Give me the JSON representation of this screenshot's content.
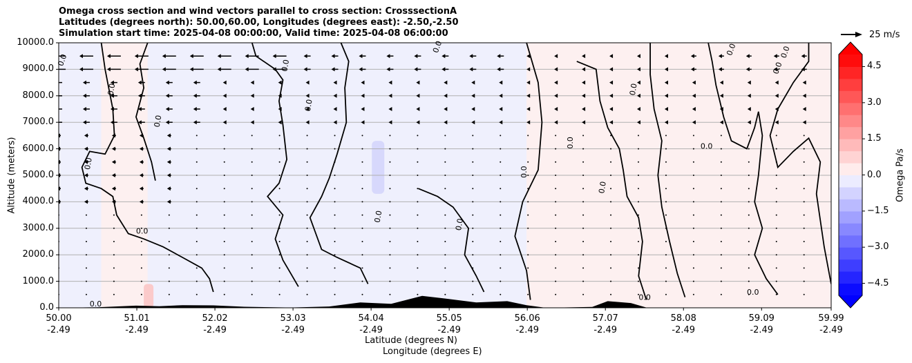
{
  "titles": [
    "Omega cross section and wind vectors parallel to cross section: CrosssectionA",
    "Latitudes (degrees north): 50.00,60.00, Longitudes (degrees east): -2.50,-2.50",
    "Simulation start time: 2025-04-08 00:00:00, Valid time: 2025-04-08 06:00:00"
  ],
  "quiver_key": {
    "label": "25 m/s"
  },
  "colorbar": {
    "label": "Omega Pa/s",
    "ticks": [
      "4.5",
      "3.0",
      "1.5",
      "0.0",
      "−1.5",
      "−3.0",
      "−4.5"
    ],
    "tick_values": [
      4.5,
      3.0,
      1.5,
      0.0,
      -1.5,
      -3.0,
      -4.5
    ],
    "range": [
      -5,
      5
    ],
    "colors_high": "#ff0000",
    "colors_low": "#0000ff"
  },
  "chart_data": {
    "type": "heatmap",
    "title": "Omega cross section and wind vectors parallel to cross section: CrosssectionA",
    "xlabel_lat": "Latitude (degrees N)",
    "xlabel_lon": "Longitude (degrees E)",
    "ylabel": "Altitude (meters)",
    "xlim": [
      50.0,
      59.99
    ],
    "ylim": [
      0,
      10000
    ],
    "grid": "horizontal",
    "x_ticks": [
      {
        "value": 50.0,
        "lat": "50.00",
        "lon": "-2.49"
      },
      {
        "value": 51.01,
        "lat": "51.01",
        "lon": "-2.49"
      },
      {
        "value": 52.02,
        "lat": "52.02",
        "lon": "-2.49"
      },
      {
        "value": 53.03,
        "lat": "53.03",
        "lon": "-2.49"
      },
      {
        "value": 54.04,
        "lat": "54.04",
        "lon": "-2.49"
      },
      {
        "value": 55.05,
        "lat": "55.05",
        "lon": "-2.49"
      },
      {
        "value": 56.06,
        "lat": "56.06",
        "lon": "-2.49"
      },
      {
        "value": 57.07,
        "lat": "57.07",
        "lon": "-2.49"
      },
      {
        "value": 58.08,
        "lat": "58.08",
        "lon": "-2.49"
      },
      {
        "value": 59.09,
        "lat": "59.09",
        "lon": "-2.49"
      },
      {
        "value": 59.99,
        "lat": "59.99",
        "lon": "-2.49"
      }
    ],
    "y_ticks": [
      {
        "value": 0,
        "label": "0.0"
      },
      {
        "value": 1000,
        "label": "1000.0"
      },
      {
        "value": 2000,
        "label": "2000.0"
      },
      {
        "value": 3000,
        "label": "3000.0"
      },
      {
        "value": 4000,
        "label": "4000.0"
      },
      {
        "value": 5000,
        "label": "5000.0"
      },
      {
        "value": 6000,
        "label": "6000.0"
      },
      {
        "value": 7000,
        "label": "7000.0"
      },
      {
        "value": 8000,
        "label": "8000.0"
      },
      {
        "value": 9000,
        "label": "9000.0"
      },
      {
        "value": 10000,
        "label": "10000.0"
      }
    ],
    "contour_label": "0.0",
    "sign_regions": [
      {
        "x": [
          50.0,
          50.55
        ],
        "sign": "negative"
      },
      {
        "x": [
          50.55,
          51.15
        ],
        "sign": "positive"
      },
      {
        "x": [
          51.15,
          53.7
        ],
        "sign": "negative"
      },
      {
        "x": [
          53.7,
          55.3
        ],
        "sign": "negative"
      },
      {
        "x": [
          55.3,
          56.05
        ],
        "sign": "negative"
      },
      {
        "x": [
          56.05,
          56.7
        ],
        "sign": "positive"
      },
      {
        "x": [
          56.7,
          57.6
        ],
        "sign": "positive"
      },
      {
        "x": [
          57.6,
          59.99
        ],
        "sign": "positive"
      }
    ],
    "wind_rows_m": [
      500,
      1000,
      1500,
      2000,
      2500,
      3000,
      3500,
      4000,
      4500,
      5000,
      5500,
      6000,
      6500,
      7000,
      7500,
      8000,
      8500,
      9000,
      9500
    ],
    "terrain": [
      {
        "x": 50.0,
        "h": 0
      },
      {
        "x": 50.5,
        "h": 20
      },
      {
        "x": 51.0,
        "h": 80
      },
      {
        "x": 51.3,
        "h": 60
      },
      {
        "x": 51.6,
        "h": 100
      },
      {
        "x": 52.0,
        "h": 90
      },
      {
        "x": 52.4,
        "h": 40
      },
      {
        "x": 53.0,
        "h": 10
      },
      {
        "x": 53.5,
        "h": 50
      },
      {
        "x": 53.9,
        "h": 200
      },
      {
        "x": 54.3,
        "h": 150
      },
      {
        "x": 54.7,
        "h": 450
      },
      {
        "x": 55.0,
        "h": 350
      },
      {
        "x": 55.4,
        "h": 200
      },
      {
        "x": 55.8,
        "h": 250
      },
      {
        "x": 56.05,
        "h": 100
      },
      {
        "x": 56.3,
        "h": 0
      },
      {
        "x": 56.9,
        "h": 30
      },
      {
        "x": 57.1,
        "h": 250
      },
      {
        "x": 57.4,
        "h": 180
      },
      {
        "x": 57.6,
        "h": 10
      },
      {
        "x": 58.5,
        "h": 0
      },
      {
        "x": 59.99,
        "h": 0
      }
    ]
  }
}
